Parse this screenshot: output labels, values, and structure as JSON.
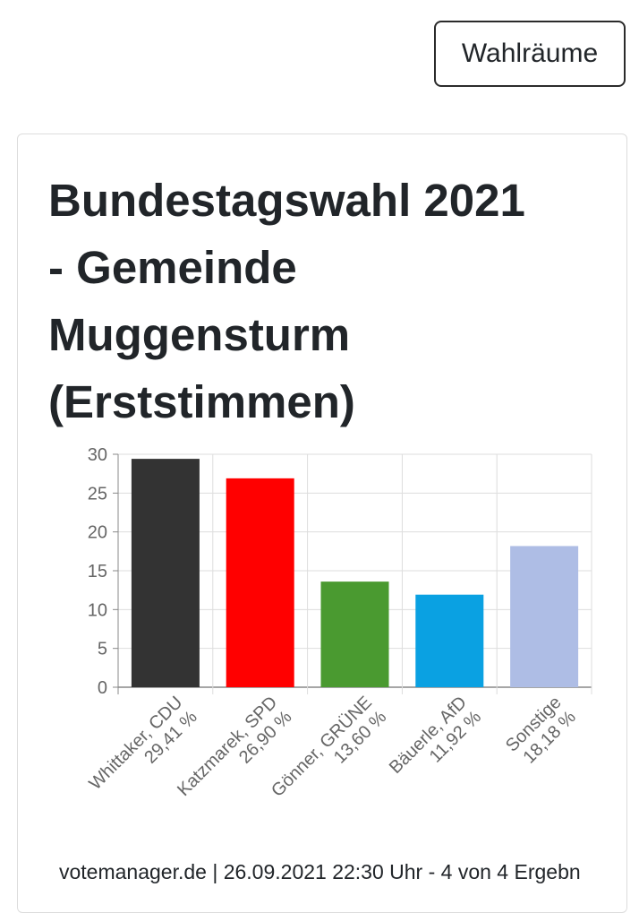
{
  "header": {
    "button_label": "Wahlräume"
  },
  "card": {
    "title_lines": [
      "Bundestagswahl 2021",
      "- Gemeinde",
      "Muggensturm",
      "(Erststimmen)"
    ],
    "footer": "votemanager.de | 26.09.2021 22:30 Uhr - 4 von 4 Ergebn"
  },
  "chart_data": {
    "type": "bar",
    "categories": [
      [
        "Whittaker, CDU",
        "29,41 %"
      ],
      [
        "Katzmarek, SPD",
        "26,90 %"
      ],
      [
        "Gönner, GRÜNE",
        "13,60 %"
      ],
      [
        "Bäuerle, AfD",
        "11,92 %"
      ],
      [
        "Sonstige",
        "18,18 %"
      ]
    ],
    "values": [
      29.41,
      26.9,
      13.6,
      11.92,
      18.18
    ],
    "colors": [
      "#333333",
      "#ff0000",
      "#4a9a30",
      "#0aa1e2",
      "#aebde5"
    ],
    "ylim": [
      0,
      30
    ],
    "yticks": [
      0,
      5,
      10,
      15,
      20,
      25,
      30
    ],
    "grid": true,
    "title": "",
    "xlabel": "",
    "ylabel": ""
  }
}
